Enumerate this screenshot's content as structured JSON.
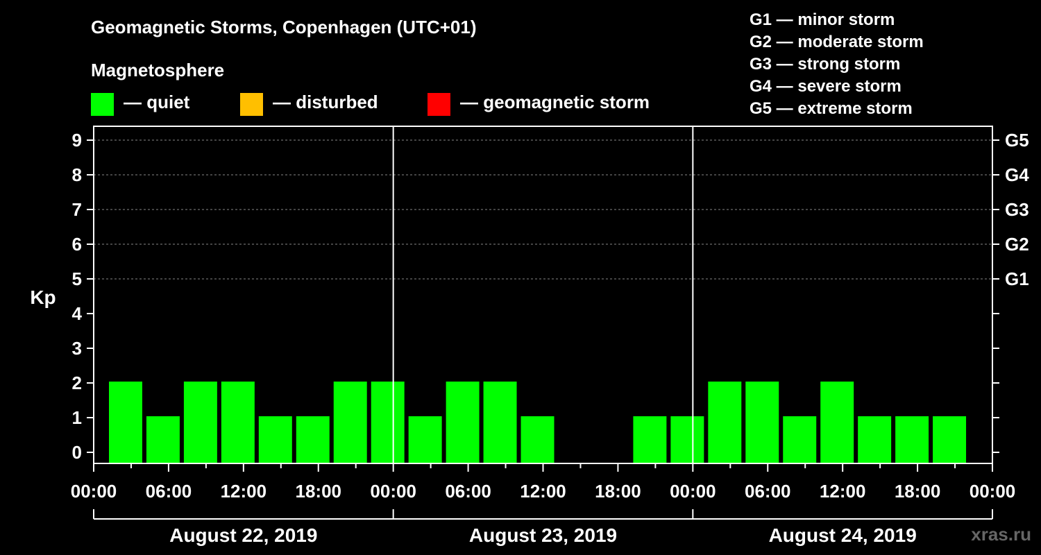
{
  "header": {
    "title": "Geomagnetic Storms, Copenhagen (UTC+01)",
    "legend_title": "Magnetosphere"
  },
  "legend": [
    {
      "label": "— quiet",
      "color": "#00ff00"
    },
    {
      "label": "— disturbed",
      "color": "#ffbf00"
    },
    {
      "label": "— geomagnetic storm",
      "color": "#ff0000"
    }
  ],
  "g_scale": [
    "G1 — minor storm",
    "G2 — moderate storm",
    "G3 — strong storm",
    "G4 — severe storm",
    "G5 — extreme storm"
  ],
  "watermark": "xras.ru",
  "chart_data": {
    "type": "bar",
    "ylabel": "Kp",
    "ylim": [
      0,
      9
    ],
    "y_ticks": [
      "0",
      "1",
      "2",
      "3",
      "4",
      "5",
      "6",
      "7",
      "8",
      "9"
    ],
    "right_ticks": [
      {
        "value": 5,
        "label": "G1"
      },
      {
        "value": 6,
        "label": "G2"
      },
      {
        "value": 7,
        "label": "G3"
      },
      {
        "value": 8,
        "label": "G4"
      },
      {
        "value": 9,
        "label": "G5"
      }
    ],
    "x_tick_labels": [
      "00:00",
      "06:00",
      "12:00",
      "18:00",
      "00:00",
      "06:00",
      "12:00",
      "18:00",
      "00:00",
      "06:00",
      "12:00",
      "18:00",
      "00:00"
    ],
    "days": [
      "August 22, 2019",
      "August 23, 2019",
      "August 24, 2019"
    ],
    "interval_hours": 3,
    "values": [
      2,
      1,
      2,
      2,
      1,
      1,
      2,
      2,
      1,
      2,
      2,
      1,
      0,
      0,
      1,
      1,
      2,
      2,
      1,
      2,
      1,
      1,
      1,
      0
    ],
    "bar_color": "#00ff00",
    "grid": true
  }
}
